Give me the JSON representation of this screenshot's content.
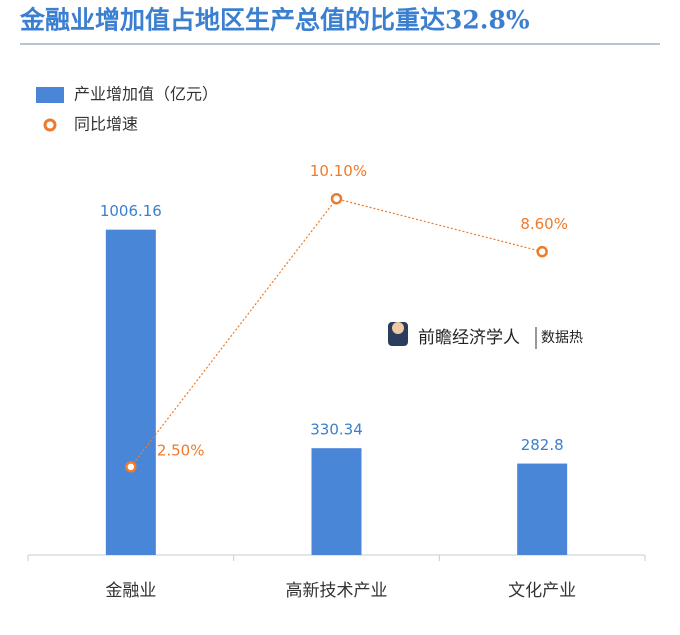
{
  "chart_data": {
    "type": "bar_line",
    "title": "金融业增加值占地区生产总值的比重达32.8%",
    "categories": [
      "金融业",
      "高新技术产业",
      "文化产业"
    ],
    "series": [
      {
        "name": "产业增加值（亿元）",
        "color": "#4a86d8",
        "type": "bar",
        "values": [
          1006.16,
          330.34,
          282.8
        ]
      },
      {
        "name": "同比增速",
        "color": "#ee7b2a",
        "type": "line",
        "axis": "y2",
        "values": [
          2.5,
          10.1,
          8.6
        ],
        "value_labels": [
          "2.50%",
          "10.10%",
          "8.60%"
        ]
      }
    ],
    "ylim": [
      0,
      1200
    ],
    "y2lim": [
      0,
      11
    ],
    "brand": "前瞻经济学人",
    "brand_tag": "数据热"
  }
}
